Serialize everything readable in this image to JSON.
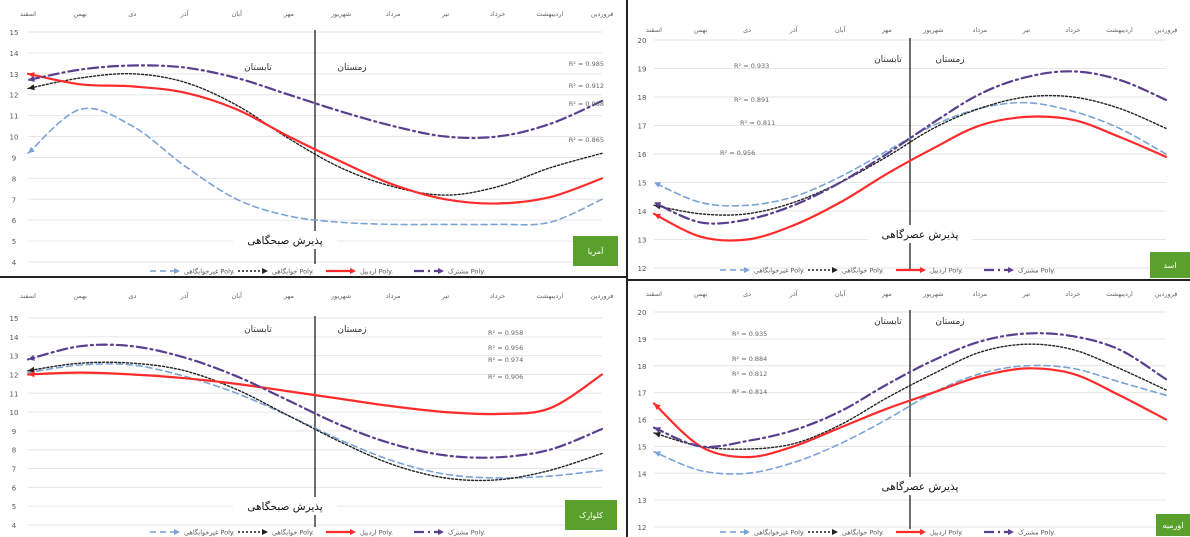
{
  "months": [
    "فروردین",
    "اردیبهشت",
    "خرداد",
    "تیر",
    "مرداد",
    "شهریور",
    "مهر",
    "آبان",
    "آذر",
    "دی",
    "بهمن",
    "اسفند"
  ],
  "legend_labels": [
    "غیرخوابگاهی Poly.",
    "خوابگاهی Poly.",
    "اردبیل Poly.",
    "مشترک Poly."
  ],
  "series_colors": [
    "#7aa3d6",
    "#222222",
    "#ff2a2a",
    "#5b3f8f"
  ],
  "chart_data": [
    {
      "type": "line",
      "panel_label": "آمریا",
      "caption": "پذیرش صبحگاهی",
      "season_labels": [
        "تابستان",
        "زمستان"
      ],
      "x": [
        "فروردین",
        "اردیبهشت",
        "خرداد",
        "تیر",
        "مرداد",
        "شهریور",
        "مهر",
        "آبان",
        "آذر",
        "دی",
        "بهمن",
        "اسفند"
      ],
      "ylim": [
        4,
        15
      ],
      "yticks": [
        4,
        5,
        6,
        7,
        8,
        9,
        10,
        11,
        12,
        13,
        14,
        15
      ],
      "season_divider": 5.5,
      "r2_labels": [
        "R² = 0.985",
        "R² = 0.912",
        "R² = 0.988",
        "R² = 0.865"
      ],
      "series": [
        {
          "values": [
            7.0,
            5.9,
            5.8,
            5.8,
            5.8,
            5.9,
            6.2,
            7.0,
            8.6,
            10.5,
            11.3,
            9.2
          ]
        },
        {
          "values": [
            9.2,
            8.5,
            7.6,
            7.2,
            7.6,
            8.5,
            9.9,
            11.5,
            12.6,
            13.0,
            12.8,
            12.3
          ]
        },
        {
          "values": [
            8.0,
            7.1,
            6.8,
            7.0,
            7.7,
            8.8,
            10.0,
            11.3,
            12.1,
            12.4,
            12.5,
            13.0
          ]
        },
        {
          "values": [
            11.7,
            10.6,
            10.0,
            10.0,
            10.5,
            11.2,
            12.0,
            12.8,
            13.3,
            13.4,
            13.2,
            12.7
          ]
        }
      ]
    },
    {
      "type": "line",
      "panel_label": "اسد",
      "caption": "پذیرش عصرگاهی",
      "season_labels": [
        "تابستان",
        "زمستان"
      ],
      "x": [
        "فروردین",
        "اردیبهشت",
        "خرداد",
        "تیر",
        "مرداد",
        "شهریور",
        "مهر",
        "آبان",
        "آذر",
        "دی",
        "بهمن",
        "اسفند"
      ],
      "ylim": [
        12,
        20
      ],
      "yticks": [
        12,
        13,
        14,
        15,
        16,
        17,
        18,
        19,
        20
      ],
      "season_divider": 5.5,
      "r2_labels": [
        "R² = 0.933",
        "R² = 0.891",
        "R² = 0.811",
        "R² = 0.956"
      ],
      "series": [
        {
          "values": [
            16.0,
            16.9,
            17.5,
            17.8,
            17.6,
            17.0,
            16.1,
            15.2,
            14.5,
            14.2,
            14.3,
            15.0
          ]
        },
        {
          "values": [
            16.9,
            17.6,
            18.0,
            18.0,
            17.6,
            16.9,
            15.9,
            15.0,
            14.3,
            13.9,
            13.9,
            14.2
          ]
        },
        {
          "values": [
            15.9,
            16.6,
            17.2,
            17.3,
            17.0,
            16.2,
            15.3,
            14.3,
            13.5,
            13.0,
            13.1,
            13.9
          ]
        },
        {
          "values": [
            17.9,
            18.6,
            18.9,
            18.7,
            18.1,
            17.1,
            16.0,
            15.0,
            14.2,
            13.7,
            13.6,
            14.3
          ]
        }
      ]
    },
    {
      "type": "line",
      "panel_label": "کلوارک",
      "caption": "پذیرش صبحگاهی",
      "season_labels": [
        "تابستان",
        "زمستان"
      ],
      "x": [
        "فروردین",
        "اردیبهشت",
        "خرداد",
        "تیر",
        "مرداد",
        "شهریور",
        "مهر",
        "آبان",
        "آذر",
        "دی",
        "بهمن",
        "اسفند"
      ],
      "ylim": [
        4,
        15
      ],
      "yticks": [
        4,
        5,
        6,
        7,
        8,
        9,
        10,
        11,
        12,
        13,
        14,
        15
      ],
      "season_divider": 5.5,
      "r2_labels": [
        "R² = 0.958",
        "R² = 0.956",
        "R² = 0.974",
        "R² = 0.906"
      ],
      "series": [
        {
          "values": [
            6.9,
            6.6,
            6.5,
            6.7,
            7.4,
            8.5,
            9.8,
            11.0,
            11.9,
            12.5,
            12.5,
            12.1
          ]
        },
        {
          "values": [
            7.8,
            6.9,
            6.4,
            6.5,
            7.2,
            8.4,
            9.8,
            11.2,
            12.2,
            12.6,
            12.6,
            12.2
          ]
        },
        {
          "values": [
            12.0,
            10.2,
            9.9,
            10.0,
            10.3,
            10.7,
            11.1,
            11.5,
            11.8,
            12.0,
            12.1,
            12.0
          ]
        },
        {
          "values": [
            9.1,
            8.0,
            7.6,
            7.7,
            8.3,
            9.3,
            10.6,
            11.9,
            12.9,
            13.5,
            13.5,
            12.8
          ]
        }
      ]
    },
    {
      "type": "line",
      "panel_label": "اورمیه",
      "caption": "پذیرش عصرگاهی",
      "season_labels": [
        "تابستان",
        "زمستان"
      ],
      "x": [
        "فروردین",
        "اردیبهشت",
        "خرداد",
        "تیر",
        "مرداد",
        "شهریور",
        "مهر",
        "آبان",
        "آذر",
        "دی",
        "بهمن",
        "اسفند"
      ],
      "ylim": [
        12,
        20
      ],
      "yticks": [
        12,
        13,
        14,
        15,
        16,
        17,
        18,
        19,
        20
      ],
      "season_divider": 5.5,
      "r2_labels": [
        "R² = 0.935",
        "R² = 0.884",
        "R² = 0.812",
        "R² = 0.814"
      ],
      "series": [
        {
          "values": [
            16.9,
            17.4,
            17.9,
            18.0,
            17.7,
            17.0,
            16.0,
            15.1,
            14.4,
            14.0,
            14.1,
            14.8
          ]
        },
        {
          "values": [
            17.1,
            17.9,
            18.6,
            18.8,
            18.5,
            17.7,
            16.8,
            15.8,
            15.1,
            14.9,
            15.0,
            15.5
          ]
        },
        {
          "values": [
            16.0,
            16.9,
            17.7,
            17.9,
            17.6,
            17.0,
            16.4,
            15.7,
            15.0,
            14.6,
            15.0,
            16.6
          ]
        },
        {
          "values": [
            17.5,
            18.6,
            19.1,
            19.2,
            18.9,
            18.2,
            17.3,
            16.3,
            15.6,
            15.2,
            15.0,
            15.7
          ]
        }
      ]
    }
  ]
}
